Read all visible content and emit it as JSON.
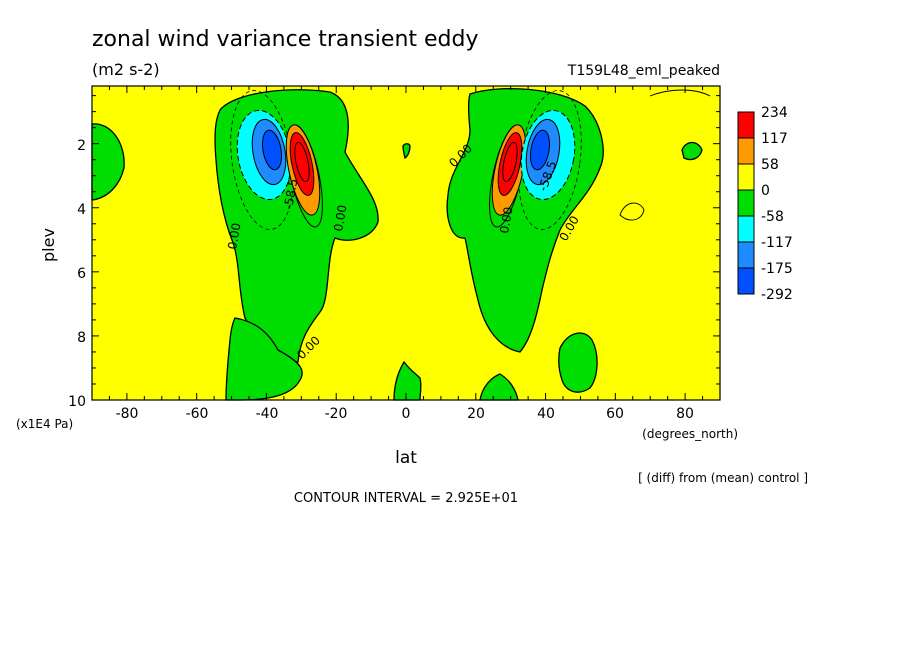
{
  "chart_data": {
    "type": "heatmap",
    "title": "zonal wind variance transient eddy",
    "units": "(m2 s-2)",
    "run_label": "T159L48_eml_peaked",
    "xlabel": "lat",
    "x_units": "(degrees_north)",
    "ylabel": "plev",
    "y_units": "(x1E4 Pa)",
    "xlim": [
      -90,
      90
    ],
    "ylim": [
      10,
      0.2
    ],
    "x_ticks": [
      "-80",
      "-60",
      "-40",
      "-20",
      "0",
      "20",
      "40",
      "60",
      "80"
    ],
    "y_ticks": [
      "2",
      "4",
      "6",
      "8",
      "10"
    ],
    "diff_note": "[ (diff) from (mean) control ]",
    "contour_interval": "CONTOUR INTERVAL = 2.925E+01",
    "contour_labels": [
      "0.00",
      "0.00",
      "0.00",
      "-58.5",
      "0.00",
      "0.00",
      "0.00",
      "-58.5",
      "0.00",
      "0.00"
    ],
    "colorbar": {
      "labels": [
        "234",
        "117",
        "58",
        "0",
        "-58",
        "-117",
        "-175",
        "-292"
      ],
      "colors": [
        "#ff0000",
        "#ff9a00",
        "#ffff00",
        "#00dd00",
        "#00ffff",
        "#1e8cff",
        "#0050ff"
      ]
    },
    "features": [
      {
        "lat": -30,
        "plev": 2.6,
        "value": 234
      },
      {
        "lat": -38,
        "plev": 2.2,
        "value": -292
      },
      {
        "lat": 30,
        "plev": 2.6,
        "value": 234
      },
      {
        "lat": 38,
        "plev": 2.2,
        "value": -292
      }
    ]
  }
}
